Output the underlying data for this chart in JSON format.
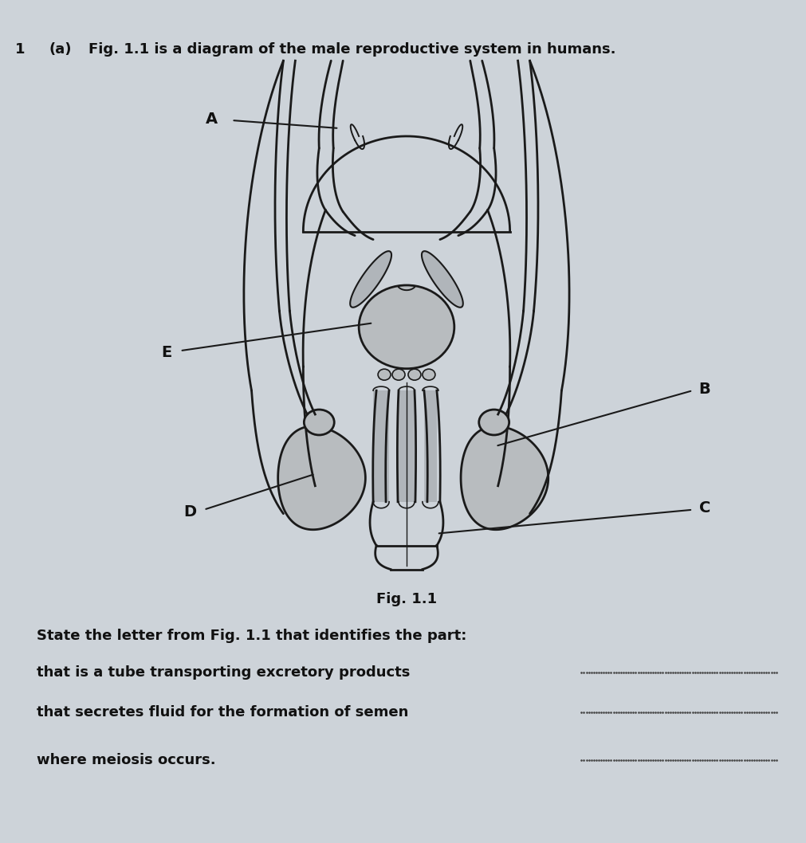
{
  "title_number": "1",
  "title_letter": "(a)",
  "title_text": "Fig. 1.1 is a diagram of the male reproductive system in humans.",
  "fig_label": "Fig. 1.1",
  "bg_color": "#cdd3d9",
  "line_color": "#1a1a1a",
  "fill_light": "#c8cdd2",
  "fill_gray": "#a8adb2",
  "fill_dotted": "#b0b5ba",
  "label_color": "#111111",
  "font_size_title": 13,
  "font_size_label": 13,
  "font_size_question": 13,
  "question_intro": "State the letter from Fig. 1.1 that identifies the part:",
  "questions": [
    "that is a tube transporting excretory products",
    "that secretes fluid for the formation of semen",
    "where meiosis occurs."
  ]
}
